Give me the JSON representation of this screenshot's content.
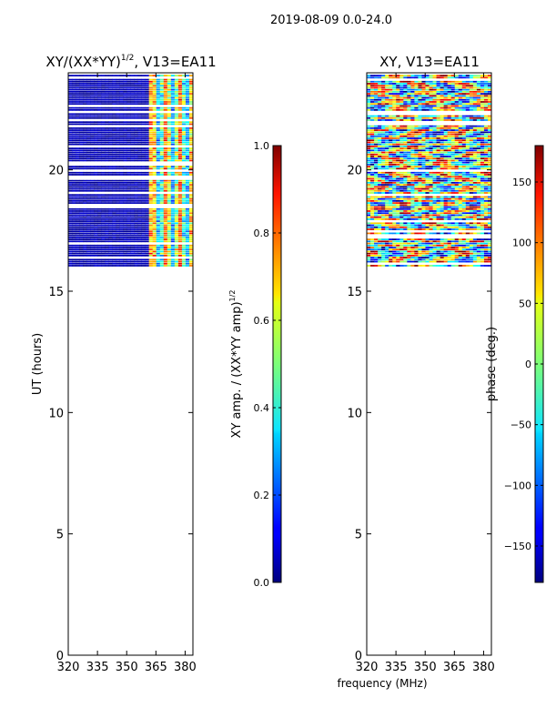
{
  "figure": {
    "suptitle": "2019-08-09 0.0-24.0",
    "xlabel_shared": "frequency (MHz)"
  },
  "chart_data": [
    {
      "type": "heatmap",
      "title_main": "XY/(XX*YY)",
      "title_sup": "1/2",
      "title_tail": ", V13=EA11",
      "ylabel": "UT (hours)",
      "xticks": [
        320,
        335,
        350,
        365,
        380
      ],
      "yticks": [
        0,
        5,
        10,
        15,
        20
      ],
      "xlim": [
        320,
        384
      ],
      "ylim": [
        0,
        24
      ],
      "data_ut_range": [
        16,
        24
      ],
      "colorbar": {
        "label": "XY amp. / (XX*YY amp)",
        "label_sup": "1/2",
        "ticks": [
          "0.0",
          "0.2",
          "0.4",
          "0.6",
          "0.8",
          "1.0"
        ],
        "range": [
          0,
          1
        ]
      }
    },
    {
      "type": "heatmap",
      "title_main": "XY, V13=EA11",
      "ylabel": "",
      "xticks": [
        320,
        335,
        350,
        365,
        380
      ],
      "yticks": [
        0,
        5,
        10,
        15,
        20
      ],
      "xlim": [
        320,
        384
      ],
      "ylim": [
        0,
        24
      ],
      "data_ut_range": [
        16,
        24
      ],
      "colorbar": {
        "label": "phase (deg.)",
        "ticks": [
          "150",
          "100",
          "50",
          "0",
          "−50",
          "−100",
          "−150"
        ],
        "tick_values": [
          150,
          100,
          50,
          0,
          -50,
          -100,
          -150
        ],
        "range": [
          -180,
          180
        ]
      }
    }
  ]
}
